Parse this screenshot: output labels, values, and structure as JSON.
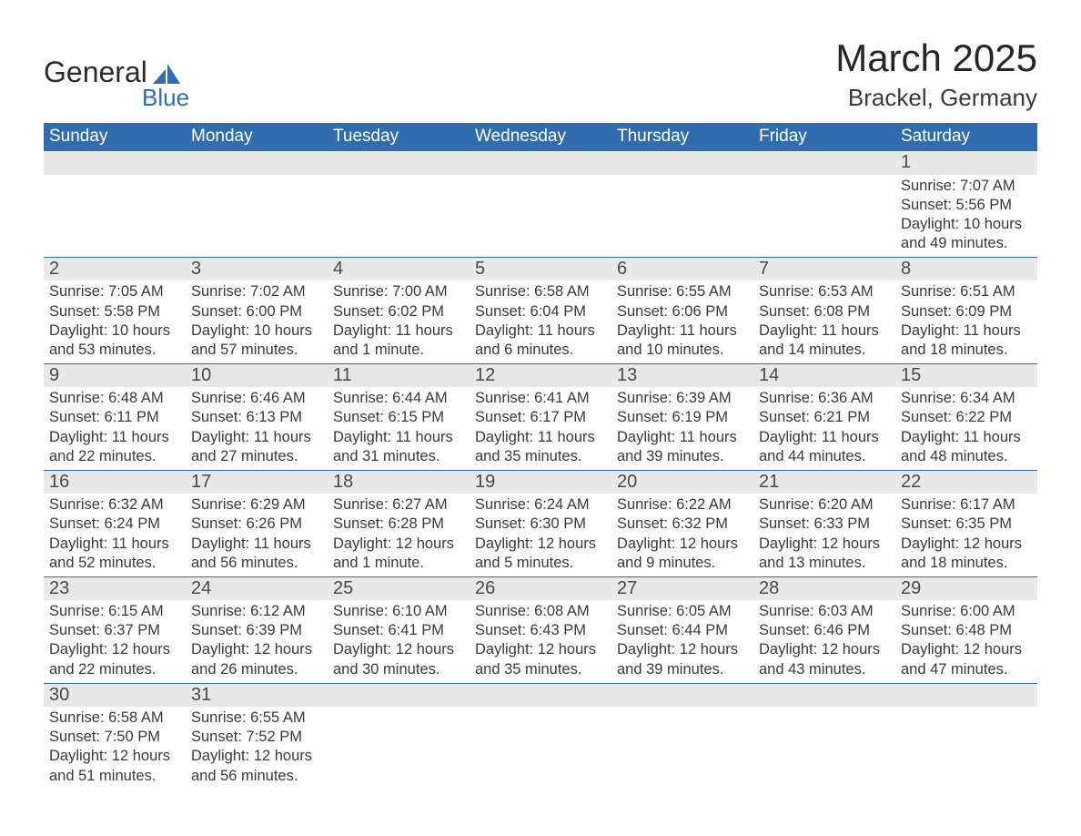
{
  "brand": {
    "part1": "General",
    "part2": "Blue",
    "tri_color": "#2f6daf"
  },
  "header": {
    "title": "March 2025",
    "location": "Brackel, Germany"
  },
  "colors": {
    "header_bg": "#2f6daf",
    "header_fg": "#ffffff",
    "daynum_bg": "#e8e8e8",
    "text": "#3a3a3a",
    "rule": "#2f6daf"
  },
  "fonts": {
    "title_size": 42,
    "location_size": 26,
    "th_size": 19,
    "daynum_size": 20,
    "body_size": 16.5
  },
  "daysOfWeek": [
    "Sunday",
    "Monday",
    "Tuesday",
    "Wednesday",
    "Thursday",
    "Friday",
    "Saturday"
  ],
  "weeks": [
    [
      null,
      null,
      null,
      null,
      null,
      null,
      {
        "n": "1",
        "sr": "Sunrise: 7:07 AM",
        "ss": "Sunset: 5:56 PM",
        "dl": "Daylight: 10 hours and 49 minutes."
      }
    ],
    [
      {
        "n": "2",
        "sr": "Sunrise: 7:05 AM",
        "ss": "Sunset: 5:58 PM",
        "dl": "Daylight: 10 hours and 53 minutes."
      },
      {
        "n": "3",
        "sr": "Sunrise: 7:02 AM",
        "ss": "Sunset: 6:00 PM",
        "dl": "Daylight: 10 hours and 57 minutes."
      },
      {
        "n": "4",
        "sr": "Sunrise: 7:00 AM",
        "ss": "Sunset: 6:02 PM",
        "dl": "Daylight: 11 hours and 1 minute."
      },
      {
        "n": "5",
        "sr": "Sunrise: 6:58 AM",
        "ss": "Sunset: 6:04 PM",
        "dl": "Daylight: 11 hours and 6 minutes."
      },
      {
        "n": "6",
        "sr": "Sunrise: 6:55 AM",
        "ss": "Sunset: 6:06 PM",
        "dl": "Daylight: 11 hours and 10 minutes."
      },
      {
        "n": "7",
        "sr": "Sunrise: 6:53 AM",
        "ss": "Sunset: 6:08 PM",
        "dl": "Daylight: 11 hours and 14 minutes."
      },
      {
        "n": "8",
        "sr": "Sunrise: 6:51 AM",
        "ss": "Sunset: 6:09 PM",
        "dl": "Daylight: 11 hours and 18 minutes."
      }
    ],
    [
      {
        "n": "9",
        "sr": "Sunrise: 6:48 AM",
        "ss": "Sunset: 6:11 PM",
        "dl": "Daylight: 11 hours and 22 minutes."
      },
      {
        "n": "10",
        "sr": "Sunrise: 6:46 AM",
        "ss": "Sunset: 6:13 PM",
        "dl": "Daylight: 11 hours and 27 minutes."
      },
      {
        "n": "11",
        "sr": "Sunrise: 6:44 AM",
        "ss": "Sunset: 6:15 PM",
        "dl": "Daylight: 11 hours and 31 minutes."
      },
      {
        "n": "12",
        "sr": "Sunrise: 6:41 AM",
        "ss": "Sunset: 6:17 PM",
        "dl": "Daylight: 11 hours and 35 minutes."
      },
      {
        "n": "13",
        "sr": "Sunrise: 6:39 AM",
        "ss": "Sunset: 6:19 PM",
        "dl": "Daylight: 11 hours and 39 minutes."
      },
      {
        "n": "14",
        "sr": "Sunrise: 6:36 AM",
        "ss": "Sunset: 6:21 PM",
        "dl": "Daylight: 11 hours and 44 minutes."
      },
      {
        "n": "15",
        "sr": "Sunrise: 6:34 AM",
        "ss": "Sunset: 6:22 PM",
        "dl": "Daylight: 11 hours and 48 minutes."
      }
    ],
    [
      {
        "n": "16",
        "sr": "Sunrise: 6:32 AM",
        "ss": "Sunset: 6:24 PM",
        "dl": "Daylight: 11 hours and 52 minutes."
      },
      {
        "n": "17",
        "sr": "Sunrise: 6:29 AM",
        "ss": "Sunset: 6:26 PM",
        "dl": "Daylight: 11 hours and 56 minutes."
      },
      {
        "n": "18",
        "sr": "Sunrise: 6:27 AM",
        "ss": "Sunset: 6:28 PM",
        "dl": "Daylight: 12 hours and 1 minute."
      },
      {
        "n": "19",
        "sr": "Sunrise: 6:24 AM",
        "ss": "Sunset: 6:30 PM",
        "dl": "Daylight: 12 hours and 5 minutes."
      },
      {
        "n": "20",
        "sr": "Sunrise: 6:22 AM",
        "ss": "Sunset: 6:32 PM",
        "dl": "Daylight: 12 hours and 9 minutes."
      },
      {
        "n": "21",
        "sr": "Sunrise: 6:20 AM",
        "ss": "Sunset: 6:33 PM",
        "dl": "Daylight: 12 hours and 13 minutes."
      },
      {
        "n": "22",
        "sr": "Sunrise: 6:17 AM",
        "ss": "Sunset: 6:35 PM",
        "dl": "Daylight: 12 hours and 18 minutes."
      }
    ],
    [
      {
        "n": "23",
        "sr": "Sunrise: 6:15 AM",
        "ss": "Sunset: 6:37 PM",
        "dl": "Daylight: 12 hours and 22 minutes."
      },
      {
        "n": "24",
        "sr": "Sunrise: 6:12 AM",
        "ss": "Sunset: 6:39 PM",
        "dl": "Daylight: 12 hours and 26 minutes."
      },
      {
        "n": "25",
        "sr": "Sunrise: 6:10 AM",
        "ss": "Sunset: 6:41 PM",
        "dl": "Daylight: 12 hours and 30 minutes."
      },
      {
        "n": "26",
        "sr": "Sunrise: 6:08 AM",
        "ss": "Sunset: 6:43 PM",
        "dl": "Daylight: 12 hours and 35 minutes."
      },
      {
        "n": "27",
        "sr": "Sunrise: 6:05 AM",
        "ss": "Sunset: 6:44 PM",
        "dl": "Daylight: 12 hours and 39 minutes."
      },
      {
        "n": "28",
        "sr": "Sunrise: 6:03 AM",
        "ss": "Sunset: 6:46 PM",
        "dl": "Daylight: 12 hours and 43 minutes."
      },
      {
        "n": "29",
        "sr": "Sunrise: 6:00 AM",
        "ss": "Sunset: 6:48 PM",
        "dl": "Daylight: 12 hours and 47 minutes."
      }
    ],
    [
      {
        "n": "30",
        "sr": "Sunrise: 6:58 AM",
        "ss": "Sunset: 7:50 PM",
        "dl": "Daylight: 12 hours and 51 minutes."
      },
      {
        "n": "31",
        "sr": "Sunrise: 6:55 AM",
        "ss": "Sunset: 7:52 PM",
        "dl": "Daylight: 12 hours and 56 minutes."
      },
      null,
      null,
      null,
      null,
      null
    ]
  ]
}
